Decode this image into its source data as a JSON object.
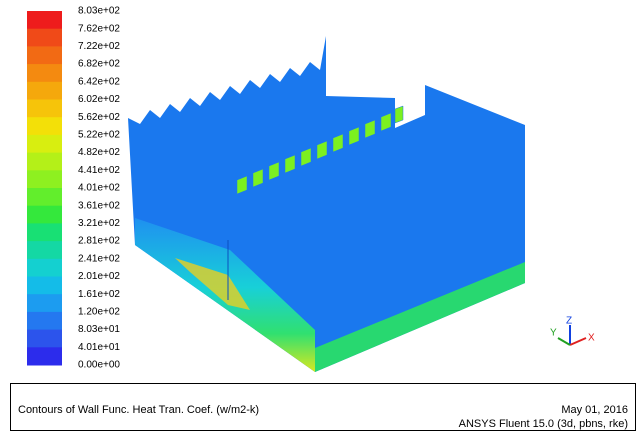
{
  "colorbar": {
    "labels": [
      "8.03e+02",
      "7.62e+02",
      "7.22e+02",
      "6.82e+02",
      "6.42e+02",
      "6.02e+02",
      "5.62e+02",
      "5.22e+02",
      "4.82e+02",
      "4.41e+02",
      "4.01e+02",
      "3.61e+02",
      "3.21e+02",
      "2.81e+02",
      "2.41e+02",
      "2.01e+02",
      "1.61e+02",
      "1.20e+02",
      "8.03e+01",
      "4.01e+01",
      "0.00e+00"
    ],
    "colors": [
      "#ee1c1c",
      "#f04a18",
      "#f26a14",
      "#f48a10",
      "#f5a80c",
      "#f6c40a",
      "#f3e008",
      "#d8ee10",
      "#b4f018",
      "#8ef020",
      "#62ee2c",
      "#34e83c",
      "#18e074",
      "#14d8a4",
      "#14d0d0",
      "#14bce8",
      "#1c9cf0",
      "#2478f0",
      "#2c54ec",
      "#2c2cec"
    ]
  },
  "triad": {
    "y": "Y",
    "z": "Z",
    "x": "X"
  },
  "footer": {
    "title": "Contours of Wall Func. Heat Tran. Coef. (w/m2-k)",
    "date": "May 01, 2016",
    "version": "ANSYS Fluent 15.0 (3d, pbns, rke)"
  }
}
